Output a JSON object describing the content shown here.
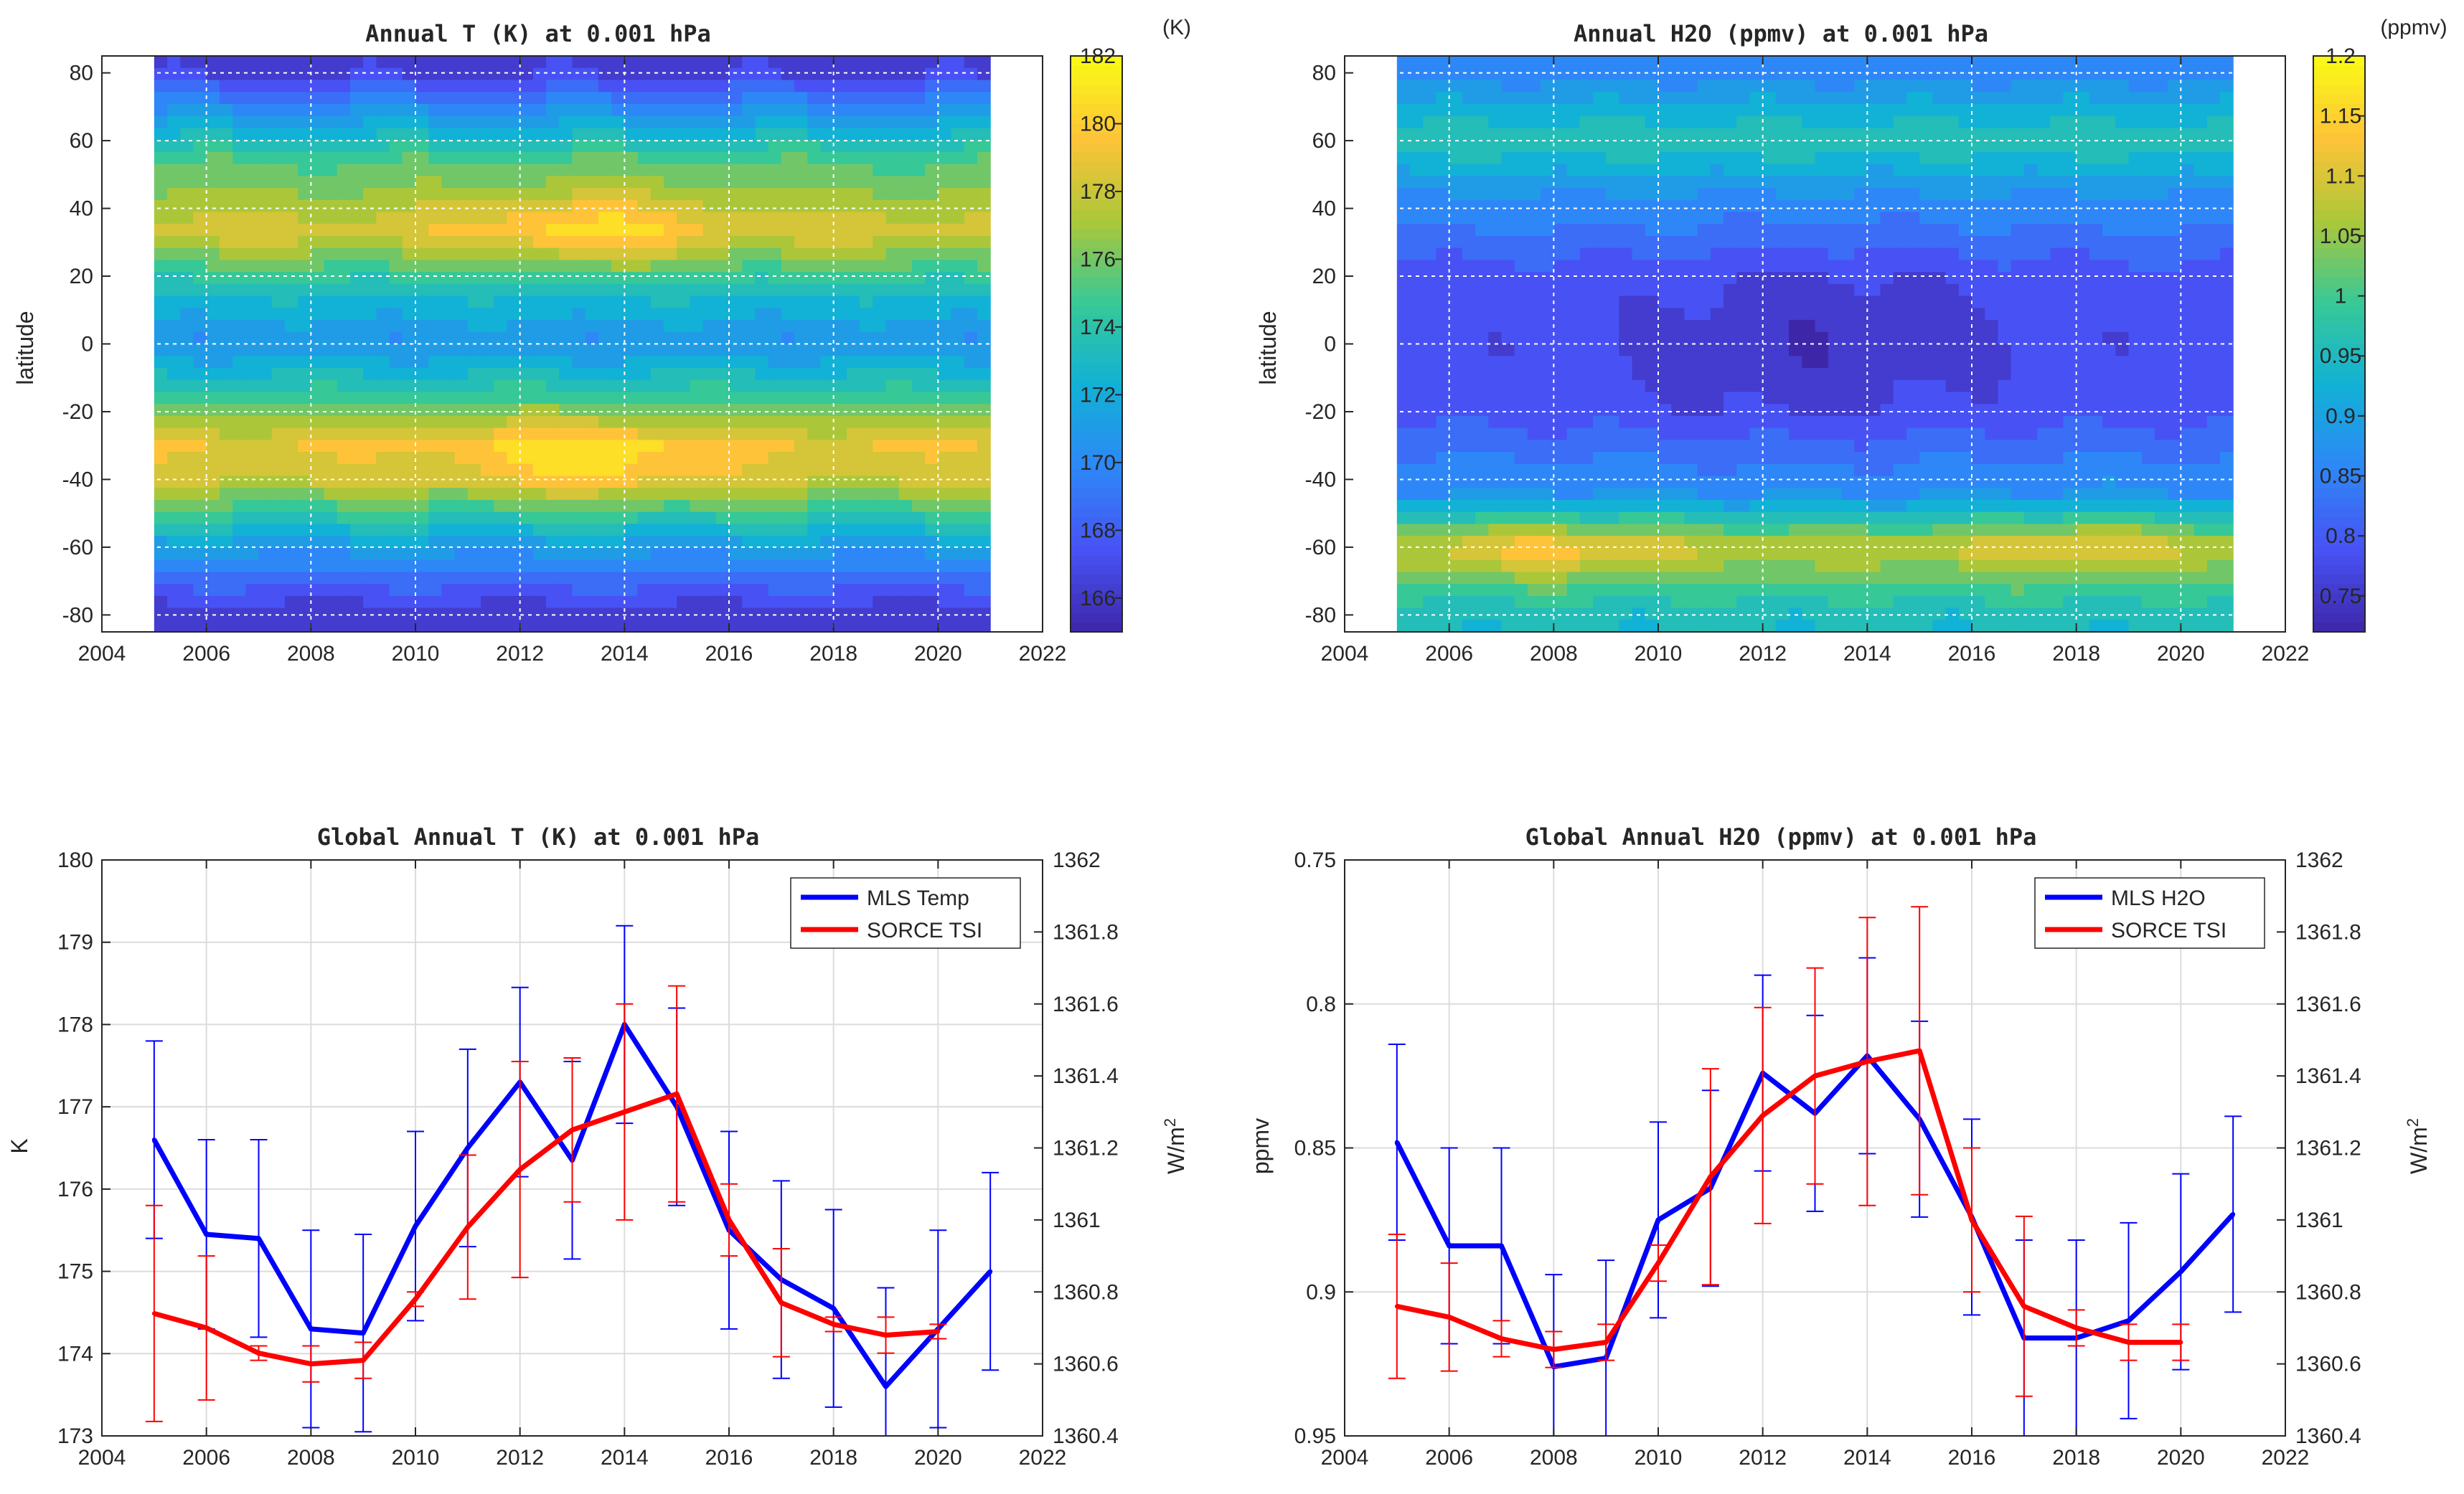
{
  "chart_data": [
    {
      "type": "heatmap",
      "title": "Annual T (K) at 0.001 hPa",
      "xlabel": "",
      "ylabel": "latitude",
      "xlim": [
        2004,
        2022
      ],
      "ylim": [
        -85,
        85
      ],
      "x_ticks": [
        2004,
        2006,
        2008,
        2010,
        2012,
        2014,
        2016,
        2018,
        2020,
        2022
      ],
      "y_ticks": [
        -80,
        -60,
        -40,
        -20,
        0,
        20,
        40,
        60,
        80
      ],
      "colorbar": {
        "unit": "(K)",
        "min": 165,
        "max": 182,
        "ticks": [
          166,
          168,
          170,
          172,
          174,
          176,
          178,
          180,
          182
        ]
      },
      "data_years": [
        2005,
        2021
      ],
      "latitude_profile": [
        {
          "lat": -80,
          "value": 166
        },
        {
          "lat": -60,
          "value": 171
        },
        {
          "lat": -40,
          "value": 178
        },
        {
          "lat": -30,
          "value": 179
        },
        {
          "lat": -15,
          "value": 174.5
        },
        {
          "lat": 0,
          "value": 170.5
        },
        {
          "lat": 15,
          "value": 173
        },
        {
          "lat": 33,
          "value": 178.5
        },
        {
          "lat": 55,
          "value": 175
        },
        {
          "lat": 70,
          "value": 170
        },
        {
          "lat": 80,
          "value": 166.5
        }
      ]
    },
    {
      "type": "heatmap",
      "title": "Annual H2O (ppmv) at 0.001 hPa",
      "xlabel": "",
      "ylabel": "latitude",
      "xlim": [
        2004,
        2022
      ],
      "ylim": [
        -85,
        85
      ],
      "x_ticks": [
        2004,
        2006,
        2008,
        2010,
        2012,
        2014,
        2016,
        2018,
        2020,
        2022
      ],
      "y_ticks": [
        -80,
        -60,
        -40,
        -20,
        0,
        20,
        40,
        60,
        80
      ],
      "colorbar": {
        "unit": "(ppmv)",
        "min": 0.72,
        "max": 1.2,
        "ticks": [
          0.75,
          0.8,
          0.85,
          0.9,
          0.95,
          1,
          1.05,
          1.1,
          1.15,
          1.2
        ]
      },
      "data_years": [
        2005,
        2021
      ],
      "latitude_profile": [
        {
          "lat": -80,
          "value": 0.95
        },
        {
          "lat": -60,
          "value": 1.08
        },
        {
          "lat": -45,
          "value": 0.88
        },
        {
          "lat": -20,
          "value": 0.79
        },
        {
          "lat": 0,
          "value": 0.78
        },
        {
          "lat": 20,
          "value": 0.79
        },
        {
          "lat": 45,
          "value": 0.88
        },
        {
          "lat": 60,
          "value": 0.97
        },
        {
          "lat": 80,
          "value": 0.86
        }
      ]
    },
    {
      "type": "line",
      "title": "Global Annual T (K) at 0.001 hPa",
      "xlabel": "",
      "ylabel": "K",
      "y2label": "W/m",
      "y2label_sup": "2",
      "xlim": [
        2004,
        2022
      ],
      "ylim": [
        173,
        180
      ],
      "y2lim": [
        1360.4,
        1362
      ],
      "x_ticks": [
        2004,
        2006,
        2008,
        2010,
        2012,
        2014,
        2016,
        2018,
        2020,
        2022
      ],
      "y_ticks": [
        173,
        174,
        175,
        176,
        177,
        178,
        179,
        180
      ],
      "y2_ticks": [
        1360.4,
        1360.6,
        1360.8,
        1361,
        1361.2,
        1361.4,
        1361.6,
        1361.8,
        1362
      ],
      "y_reversed": false,
      "legend": "top-right",
      "series": [
        {
          "name": "MLS Temp",
          "axis": "left",
          "color": "#0000ff",
          "x": [
            2005,
            2006,
            2007,
            2008,
            2009,
            2010,
            2011,
            2012,
            2013,
            2014,
            2015,
            2016,
            2017,
            2018,
            2019,
            2020,
            2021
          ],
          "y": [
            176.6,
            175.45,
            175.4,
            174.3,
            174.25,
            175.55,
            176.5,
            177.3,
            176.35,
            178.0,
            177.0,
            175.5,
            174.9,
            174.55,
            173.6,
            174.3,
            175.0
          ],
          "err": [
            1.2,
            1.15,
            1.2,
            1.2,
            1.2,
            1.15,
            1.2,
            1.15,
            1.2,
            1.2,
            1.2,
            1.2,
            1.2,
            1.2,
            1.2,
            1.2,
            1.2
          ]
        },
        {
          "name": "SORCE TSI",
          "axis": "right",
          "color": "#ff0000",
          "x": [
            2005,
            2006,
            2007,
            2008,
            2009,
            2010,
            2011,
            2012,
            2013,
            2014,
            2015,
            2016,
            2017,
            2018,
            2019,
            2020
          ],
          "y": [
            1360.74,
            1360.7,
            1360.63,
            1360.6,
            1360.61,
            1360.78,
            1360.98,
            1361.14,
            1361.25,
            1361.3,
            1361.35,
            1361.0,
            1360.77,
            1360.71,
            1360.68,
            1360.69
          ],
          "err": [
            0.3,
            0.2,
            0.02,
            0.05,
            0.05,
            0.02,
            0.2,
            0.3,
            0.2,
            0.3,
            0.3,
            0.1,
            0.15,
            0.02,
            0.05,
            0.02
          ]
        }
      ]
    },
    {
      "type": "line",
      "title": "Global Annual H2O (ppmv) at 0.001 hPa",
      "xlabel": "",
      "ylabel": "ppmv",
      "y2label": "W/m",
      "y2label_sup": "2",
      "xlim": [
        2004,
        2022
      ],
      "ylim": [
        0.75,
        0.95
      ],
      "y2lim": [
        1360.4,
        1362
      ],
      "x_ticks": [
        2004,
        2006,
        2008,
        2010,
        2012,
        2014,
        2016,
        2018,
        2020,
        2022
      ],
      "y_ticks": [
        0.75,
        0.8,
        0.85,
        0.9,
        0.95
      ],
      "y2_ticks": [
        1360.4,
        1360.6,
        1360.8,
        1361,
        1361.2,
        1361.4,
        1361.6,
        1361.8,
        1362
      ],
      "y_reversed": true,
      "legend": "top-right",
      "series": [
        {
          "name": "MLS H2O",
          "axis": "left",
          "color": "#0000ff",
          "x": [
            2005,
            2006,
            2007,
            2008,
            2009,
            2010,
            2011,
            2012,
            2013,
            2014,
            2015,
            2016,
            2017,
            2018,
            2019,
            2020,
            2021
          ],
          "y": [
            0.848,
            0.884,
            0.884,
            0.926,
            0.923,
            0.875,
            0.864,
            0.824,
            0.838,
            0.818,
            0.84,
            0.874,
            0.916,
            0.916,
            0.91,
            0.893,
            0.873
          ],
          "err": [
            0.034,
            0.034,
            0.034,
            0.032,
            0.034,
            0.034,
            0.034,
            0.034,
            0.034,
            0.034,
            0.034,
            0.034,
            0.034,
            0.034,
            0.034,
            0.034,
            0.034
          ]
        },
        {
          "name": "SORCE TSI",
          "axis": "right",
          "color": "#ff0000",
          "x": [
            2005,
            2006,
            2007,
            2008,
            2009,
            2010,
            2011,
            2012,
            2013,
            2014,
            2015,
            2016,
            2017,
            2018,
            2019,
            2020
          ],
          "y": [
            1360.76,
            1360.73,
            1360.67,
            1360.64,
            1360.66,
            1360.88,
            1361.12,
            1361.29,
            1361.4,
            1361.44,
            1361.47,
            1361.0,
            1360.76,
            1360.7,
            1360.66,
            1360.66
          ],
          "err": [
            0.2,
            0.15,
            0.05,
            0.05,
            0.05,
            0.05,
            0.3,
            0.3,
            0.3,
            0.4,
            0.4,
            0.2,
            0.25,
            0.05,
            0.05,
            0.05
          ]
        }
      ]
    }
  ]
}
